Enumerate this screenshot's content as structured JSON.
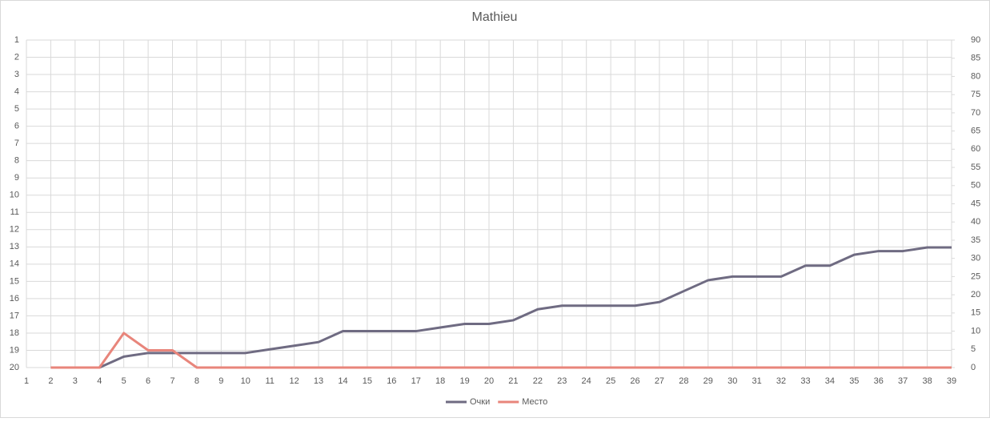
{
  "chart_data": {
    "type": "line",
    "title": "Mathieu",
    "x": [
      1,
      2,
      3,
      4,
      5,
      6,
      7,
      8,
      9,
      10,
      11,
      12,
      13,
      14,
      15,
      16,
      17,
      18,
      19,
      20,
      21,
      22,
      23,
      24,
      25,
      26,
      27,
      28,
      29,
      30,
      31,
      32,
      33,
      34,
      35,
      36,
      37,
      38,
      39
    ],
    "xlim": [
      1,
      39
    ],
    "ylim": [
      1,
      20
    ],
    "y_reversed": true,
    "yticks": [
      1,
      2,
      3,
      4,
      5,
      6,
      7,
      8,
      9,
      10,
      11,
      12,
      13,
      14,
      15,
      16,
      17,
      18,
      19,
      20
    ],
    "y2lim": [
      0,
      90
    ],
    "y2ticks": [
      0,
      5,
      10,
      15,
      20,
      25,
      30,
      35,
      40,
      45,
      50,
      55,
      60,
      65,
      70,
      75,
      80,
      85,
      90
    ],
    "grid": true,
    "legend": "bottom",
    "series": [
      {
        "name": "Очки",
        "color": "#6f6b82",
        "axis": "y2",
        "values": [
          null,
          0,
          0,
          0,
          3,
          4,
          4,
          4,
          4,
          4,
          5,
          6,
          7,
          10,
          10,
          10,
          10,
          11,
          12,
          12,
          13,
          16,
          17,
          17,
          17,
          17,
          18,
          21,
          24,
          25,
          25,
          25,
          28,
          28,
          31,
          32,
          32,
          33,
          33
        ]
      },
      {
        "name": "Место",
        "color": "#e8857b",
        "axis": "y",
        "values": [
          null,
          20,
          20,
          20,
          18,
          19,
          19,
          20,
          20,
          20,
          20,
          20,
          20,
          20,
          20,
          20,
          20,
          20,
          20,
          20,
          20,
          20,
          20,
          20,
          20,
          20,
          20,
          20,
          20,
          20,
          20,
          20,
          20,
          20,
          20,
          20,
          20,
          20,
          20
        ]
      }
    ]
  }
}
